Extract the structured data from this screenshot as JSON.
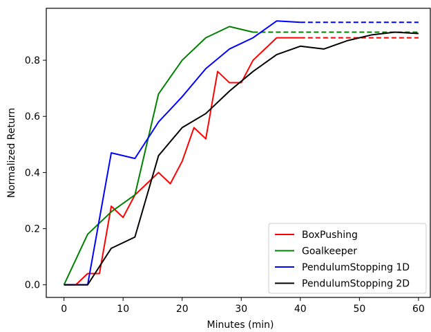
{
  "chart_data": {
    "type": "line",
    "title": "",
    "xlabel": "Minutes (min)",
    "ylabel": "Normalized Return",
    "xlim": [
      -3,
      62
    ],
    "ylim": [
      -0.045,
      0.985
    ],
    "xticks": [
      0,
      10,
      20,
      30,
      40,
      50,
      60
    ],
    "yticks": [
      0.0,
      0.2,
      0.4,
      0.6,
      0.8
    ],
    "xtick_labels": [
      "0",
      "10",
      "20",
      "30",
      "40",
      "50",
      "60"
    ],
    "ytick_labels": [
      "0.0",
      "0.2",
      "0.4",
      "0.6",
      "0.8"
    ],
    "grid": false,
    "legend_position": "lower-right",
    "series": [
      {
        "name": "BoxPushing",
        "color": "#ff0000",
        "x": [
          0,
          2,
          4,
          6,
          8,
          10,
          12,
          14,
          16,
          18,
          20,
          22,
          24,
          26,
          28,
          30,
          32,
          34,
          36,
          38,
          40
        ],
        "y": [
          0.0,
          0.0,
          0.04,
          0.04,
          0.28,
          0.24,
          0.32,
          0.36,
          0.4,
          0.36,
          0.44,
          0.56,
          0.52,
          0.76,
          0.72,
          0.72,
          0.8,
          0.84,
          0.88,
          0.88,
          0.88
        ],
        "dashed_x": [
          40,
          60
        ],
        "dashed_y": [
          0.88,
          0.88
        ]
      },
      {
        "name": "Goalkeeper",
        "color": "#008000",
        "x": [
          0,
          4,
          8,
          12,
          16,
          20,
          24,
          28,
          32
        ],
        "y": [
          0.0,
          0.18,
          0.26,
          0.32,
          0.68,
          0.8,
          0.88,
          0.92,
          0.9
        ],
        "dashed_x": [
          32,
          60
        ],
        "dashed_y": [
          0.9,
          0.9
        ]
      },
      {
        "name": "PendulumStopping 1D",
        "color": "#0000ff",
        "x": [
          0,
          4,
          8,
          12,
          16,
          20,
          24,
          28,
          32,
          36,
          40
        ],
        "y": [
          0.0,
          0.0,
          0.47,
          0.45,
          0.58,
          0.67,
          0.77,
          0.84,
          0.88,
          0.94,
          0.935
        ],
        "dashed_x": [
          40,
          60
        ],
        "dashed_y": [
          0.935,
          0.935
        ]
      },
      {
        "name": "PendulumStopping 2D",
        "color": "#000000",
        "x": [
          0,
          4,
          8,
          12,
          16,
          20,
          24,
          28,
          32,
          36,
          40,
          44,
          48,
          52,
          56,
          60
        ],
        "y": [
          0.0,
          0.0,
          0.13,
          0.17,
          0.46,
          0.56,
          0.61,
          0.69,
          0.76,
          0.82,
          0.85,
          0.84,
          0.87,
          0.89,
          0.9,
          0.895
        ]
      }
    ]
  }
}
